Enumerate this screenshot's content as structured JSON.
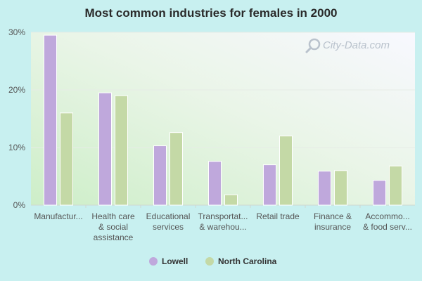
{
  "chart_data": {
    "type": "bar",
    "title": "Most common industries for females in 2000",
    "categories": [
      [
        "Manufactur..."
      ],
      [
        "Health care",
        "& social",
        "assistance"
      ],
      [
        "Educational",
        "services"
      ],
      [
        "Transportat...",
        "& warehou..."
      ],
      [
        "Retail trade"
      ],
      [
        "Finance &",
        "insurance"
      ],
      [
        "Accommo...",
        "& food serv..."
      ]
    ],
    "series": [
      {
        "name": "Lowell",
        "color": "#bfa8dc",
        "values": [
          29.5,
          19.5,
          10.3,
          7.6,
          7.0,
          5.9,
          4.3
        ]
      },
      {
        "name": "North Carolina",
        "color": "#c4d9a6",
        "values": [
          16.0,
          19.0,
          12.6,
          1.8,
          12.0,
          6.0,
          6.8
        ]
      }
    ],
    "ylim": [
      0,
      30
    ],
    "yticks": [
      0,
      10,
      20,
      30
    ],
    "ytick_labels": [
      "0%",
      "10%",
      "20%",
      "30%"
    ],
    "grid": true,
    "legend_position": "bottom-center"
  },
  "watermark": {
    "text": "City-Data.com",
    "icon": "magnifier-icon"
  }
}
